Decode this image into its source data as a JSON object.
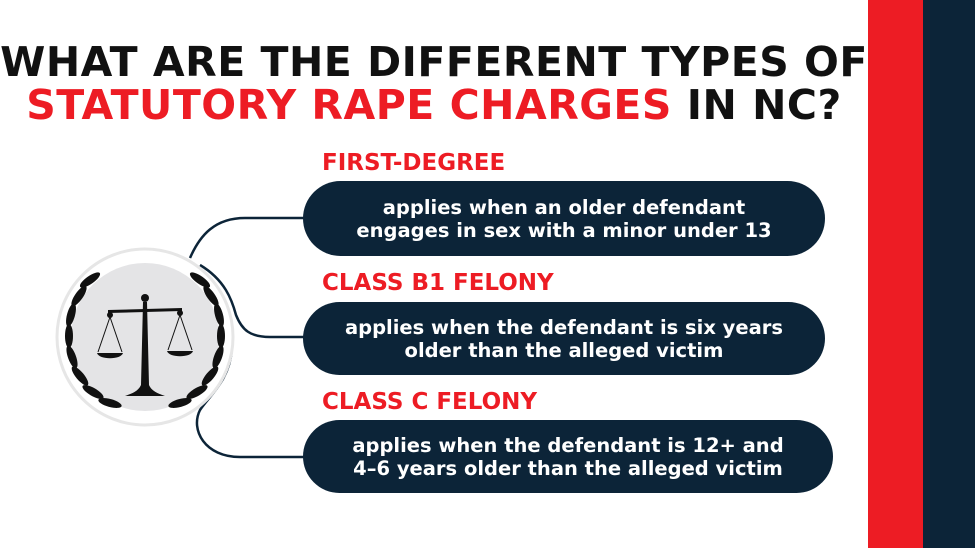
{
  "title": {
    "line1": "WHAT ARE THE DIFFERENT TYPES OF",
    "line2_highlight": "STATUTORY RAPE CHARGES",
    "line2_rest": " IN NC?"
  },
  "colors": {
    "accent_red": "#ED1C24",
    "navy": "#0C2438"
  },
  "emblem": {
    "icon": "scales-of-justice-with-laurel-wreath-icon"
  },
  "items": [
    {
      "heading": "FIRST-DEGREE",
      "line1": "applies when an older defendant",
      "line2": "engages in sex with a minor under 13"
    },
    {
      "heading": "CLASS B1 FELONY",
      "line1": "applies when the defendant is six years",
      "line2": "older than the alleged victim"
    },
    {
      "heading": "CLASS C FELONY",
      "line1": "applies when the defendant is 12+ and",
      "line2": "4–6 years older than the alleged victim"
    }
  ]
}
